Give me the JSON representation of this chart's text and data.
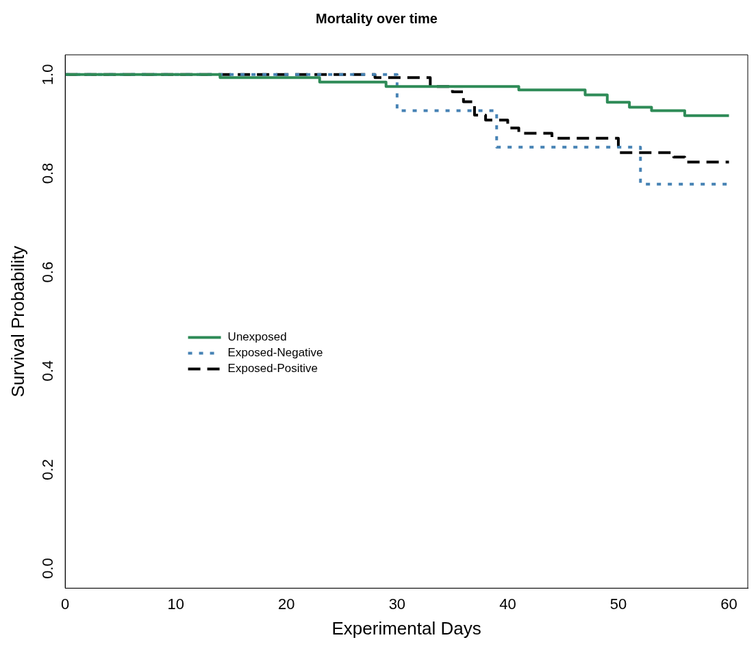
{
  "chart_data": {
    "type": "step",
    "title": "Mortality over time",
    "xlabel": "Experimental Days",
    "ylabel": "Survival Probability",
    "xlim": [
      0,
      61.7
    ],
    "xticks": [
      0,
      10,
      20,
      30,
      40,
      50,
      60
    ],
    "ylim": [
      -0.04,
      1.04
    ],
    "yticks": [
      {
        "value": 0,
        "label": "0.0"
      },
      0.2,
      0.4,
      0.6,
      0.8,
      {
        "value": 1,
        "label": "1.0"
      }
    ],
    "grid": false,
    "legend": "left",
    "marker": "none",
    "series": [
      {
        "name": "Unexposed",
        "color": "#2e8b57",
        "line_style": "solid",
        "x": [
          0,
          14,
          23,
          29,
          41,
          47,
          49,
          51,
          53,
          56,
          60
        ],
        "values": [
          1.0,
          0.994,
          0.985,
          0.976,
          0.969,
          0.959,
          0.944,
          0.934,
          0.927,
          0.917,
          0.917
        ]
      },
      {
        "name": "Exposed-Negative",
        "color": "#4682b4",
        "line_style": "dotted",
        "x": [
          0,
          30,
          39,
          52,
          60
        ],
        "values": [
          1.0,
          0.927,
          0.853,
          0.778,
          0.778
        ]
      },
      {
        "name": "Exposed-Positive",
        "color": "#000000",
        "line_style": "dashed",
        "x": [
          0,
          28,
          33,
          35,
          36,
          37,
          38,
          40,
          41,
          44,
          50,
          55,
          56,
          60
        ],
        "values": [
          1.0,
          0.994,
          0.976,
          0.965,
          0.945,
          0.918,
          0.908,
          0.892,
          0.881,
          0.871,
          0.842,
          0.833,
          0.823,
          0.823
        ]
      }
    ]
  }
}
